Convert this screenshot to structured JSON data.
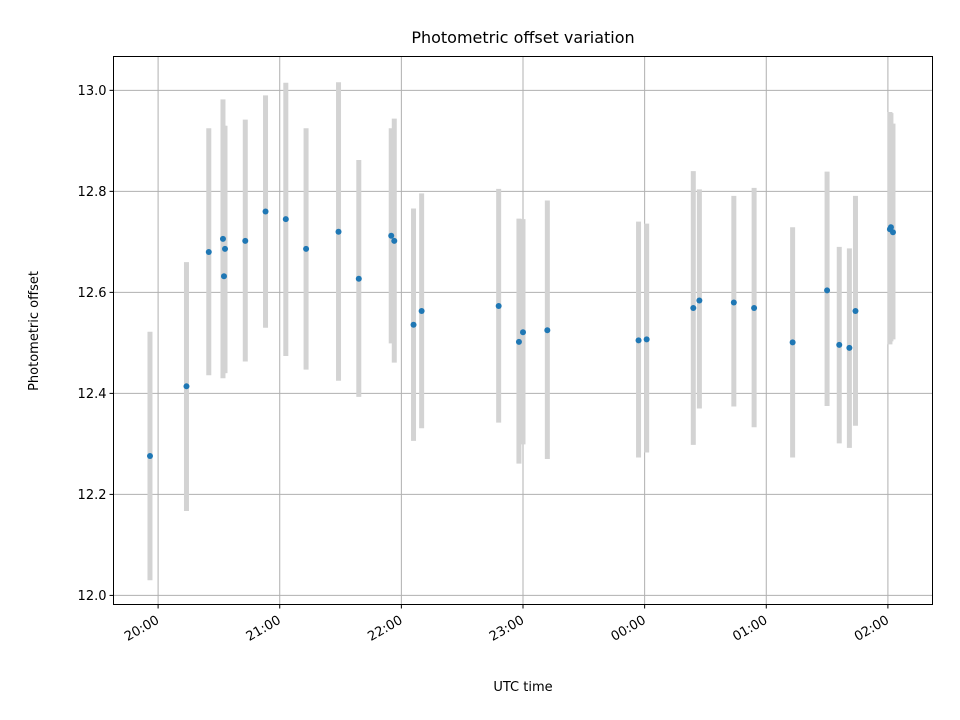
{
  "chart_data": {
    "type": "scatter",
    "title": "Photometric offset variation",
    "xlabel": "UTC time",
    "ylabel": "Photometric offset",
    "grid": true,
    "x_unit": "minutes after 20:00",
    "x_ticks": [
      {
        "label": "20:00",
        "value": 0
      },
      {
        "label": "21:00",
        "value": 60
      },
      {
        "label": "22:00",
        "value": 120
      },
      {
        "label": "23:00",
        "value": 180
      },
      {
        "label": "00:00",
        "value": 240
      },
      {
        "label": "01:00",
        "value": 300
      },
      {
        "label": "02:00",
        "value": 360
      }
    ],
    "xlim": [
      -22,
      382
    ],
    "y_ticks": [
      12.0,
      12.2,
      12.4,
      12.6,
      12.8,
      13.0
    ],
    "ylim": [
      11.982,
      13.067
    ],
    "colors": {
      "point": "#1f77b4",
      "errorbar": "#d3d3d3"
    },
    "points": [
      {
        "x": -4,
        "y": 12.276,
        "low": 12.03,
        "high": 12.522
      },
      {
        "x": 14,
        "y": 12.414,
        "low": 12.167,
        "high": 12.66
      },
      {
        "x": 25,
        "y": 12.68,
        "low": 12.436,
        "high": 12.925
      },
      {
        "x": 32,
        "y": 12.706,
        "low": 12.43,
        "high": 12.982
      },
      {
        "x": 32.5,
        "y": 12.632,
        "low": 12.44,
        "high": 12.93
      },
      {
        "x": 33,
        "y": 12.686,
        "low": 12.44,
        "high": 12.93
      },
      {
        "x": 43,
        "y": 12.702,
        "low": 12.463,
        "high": 12.942
      },
      {
        "x": 53,
        "y": 12.76,
        "low": 12.53,
        "high": 12.99
      },
      {
        "x": 63,
        "y": 12.745,
        "low": 12.474,
        "high": 13.015
      },
      {
        "x": 73,
        "y": 12.686,
        "low": 12.447,
        "high": 12.925
      },
      {
        "x": 89,
        "y": 12.72,
        "low": 12.425,
        "high": 13.016
      },
      {
        "x": 99,
        "y": 12.627,
        "low": 12.393,
        "high": 12.862
      },
      {
        "x": 115,
        "y": 12.712,
        "low": 12.499,
        "high": 12.925
      },
      {
        "x": 116.5,
        "y": 12.702,
        "low": 12.461,
        "high": 12.944
      },
      {
        "x": 126,
        "y": 12.536,
        "low": 12.306,
        "high": 12.766
      },
      {
        "x": 130,
        "y": 12.563,
        "low": 12.331,
        "high": 12.796
      },
      {
        "x": 168,
        "y": 12.573,
        "low": 12.342,
        "high": 12.805
      },
      {
        "x": 178,
        "y": 12.502,
        "low": 12.261,
        "high": 12.746
      },
      {
        "x": 180,
        "y": 12.521,
        "low": 12.299,
        "high": 12.745
      },
      {
        "x": 192,
        "y": 12.525,
        "low": 12.27,
        "high": 12.782
      },
      {
        "x": 237,
        "y": 12.505,
        "low": 12.273,
        "high": 12.74
      },
      {
        "x": 241,
        "y": 12.507,
        "low": 12.283,
        "high": 12.736
      },
      {
        "x": 264,
        "y": 12.569,
        "low": 12.298,
        "high": 12.84
      },
      {
        "x": 267,
        "y": 12.584,
        "low": 12.37,
        "high": 12.804
      },
      {
        "x": 284,
        "y": 12.58,
        "low": 12.374,
        "high": 12.791
      },
      {
        "x": 294,
        "y": 12.569,
        "low": 12.333,
        "high": 12.807
      },
      {
        "x": 313,
        "y": 12.501,
        "low": 12.273,
        "high": 12.729
      },
      {
        "x": 330,
        "y": 12.604,
        "low": 12.375,
        "high": 12.839
      },
      {
        "x": 336,
        "y": 12.496,
        "low": 12.301,
        "high": 12.69
      },
      {
        "x": 341,
        "y": 12.49,
        "low": 12.292,
        "high": 12.687
      },
      {
        "x": 344,
        "y": 12.563,
        "low": 12.336,
        "high": 12.791
      },
      {
        "x": 361,
        "y": 12.725,
        "low": 12.497,
        "high": 12.957
      },
      {
        "x": 361.5,
        "y": 12.729,
        "low": 12.503,
        "high": 12.955
      },
      {
        "x": 362.5,
        "y": 12.719,
        "low": 12.507,
        "high": 12.934
      }
    ]
  }
}
